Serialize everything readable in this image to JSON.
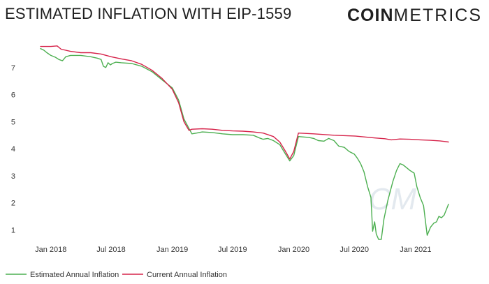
{
  "header": {
    "title": "ESTIMATED INFLATION WITH EIP-1559",
    "brand_bold": "COIN",
    "brand_light": "METRICS"
  },
  "chart_data": {
    "type": "line",
    "title": "ESTIMATED INFLATION WITH EIP-1559",
    "xlabel": "",
    "ylabel": "",
    "x_start": "2017-12-01",
    "x_end": "2021-04-10",
    "ylim": [
      0.6,
      7.95
    ],
    "y_ticks": [
      1,
      2,
      3,
      4,
      5,
      6,
      7
    ],
    "x_ticks": [
      {
        "label": "Jan 2018",
        "date": "2018-01-01"
      },
      {
        "label": "Jul 2018",
        "date": "2018-07-01"
      },
      {
        "label": "Jan 2019",
        "date": "2019-01-01"
      },
      {
        "label": "Jul 2019",
        "date": "2019-07-01"
      },
      {
        "label": "Jan 2020",
        "date": "2020-01-01"
      },
      {
        "label": "Jul 2020",
        "date": "2020-07-01"
      },
      {
        "label": "Jan 2021",
        "date": "2021-01-01"
      }
    ],
    "grid": false,
    "legend_position": "bottom-left",
    "series": [
      {
        "name": "Estimated Annual Inflation",
        "color": "#4caf50",
        "points": [
          [
            "2017-12-01",
            7.7
          ],
          [
            "2017-12-10",
            7.65
          ],
          [
            "2017-12-20",
            7.55
          ],
          [
            "2018-01-01",
            7.45
          ],
          [
            "2018-01-15",
            7.38
          ],
          [
            "2018-01-25",
            7.3
          ],
          [
            "2018-02-05",
            7.25
          ],
          [
            "2018-02-15",
            7.4
          ],
          [
            "2018-03-01",
            7.45
          ],
          [
            "2018-04-01",
            7.45
          ],
          [
            "2018-05-01",
            7.4
          ],
          [
            "2018-05-20",
            7.35
          ],
          [
            "2018-06-01",
            7.3
          ],
          [
            "2018-06-08",
            7.05
          ],
          [
            "2018-06-15",
            7.0
          ],
          [
            "2018-06-22",
            7.18
          ],
          [
            "2018-06-29",
            7.1
          ],
          [
            "2018-07-05",
            7.15
          ],
          [
            "2018-07-15",
            7.2
          ],
          [
            "2018-08-01",
            7.18
          ],
          [
            "2018-09-01",
            7.15
          ],
          [
            "2018-10-01",
            7.05
          ],
          [
            "2018-11-01",
            6.85
          ],
          [
            "2018-12-01",
            6.55
          ],
          [
            "2019-01-01",
            6.25
          ],
          [
            "2019-01-20",
            5.8
          ],
          [
            "2019-02-05",
            5.1
          ],
          [
            "2019-02-20",
            4.75
          ],
          [
            "2019-03-01",
            4.55
          ],
          [
            "2019-03-15",
            4.58
          ],
          [
            "2019-04-01",
            4.62
          ],
          [
            "2019-05-01",
            4.6
          ],
          [
            "2019-06-01",
            4.55
          ],
          [
            "2019-07-01",
            4.52
          ],
          [
            "2019-08-01",
            4.52
          ],
          [
            "2019-09-01",
            4.5
          ],
          [
            "2019-09-20",
            4.4
          ],
          [
            "2019-10-01",
            4.35
          ],
          [
            "2019-10-15",
            4.38
          ],
          [
            "2019-11-01",
            4.3
          ],
          [
            "2019-11-20",
            4.15
          ],
          [
            "2019-12-05",
            3.85
          ],
          [
            "2019-12-20",
            3.55
          ],
          [
            "2020-01-01",
            3.75
          ],
          [
            "2020-01-15",
            4.45
          ],
          [
            "2020-02-15",
            4.42
          ],
          [
            "2020-03-01",
            4.38
          ],
          [
            "2020-03-15",
            4.3
          ],
          [
            "2020-04-01",
            4.28
          ],
          [
            "2020-04-15",
            4.38
          ],
          [
            "2020-05-01",
            4.3
          ],
          [
            "2020-05-15",
            4.1
          ],
          [
            "2020-06-01",
            4.05
          ],
          [
            "2020-06-15",
            3.9
          ],
          [
            "2020-07-01",
            3.8
          ],
          [
            "2020-07-10",
            3.65
          ],
          [
            "2020-07-20",
            3.45
          ],
          [
            "2020-07-30",
            3.15
          ],
          [
            "2020-08-10",
            2.6
          ],
          [
            "2020-08-20",
            2.2
          ],
          [
            "2020-08-25",
            0.95
          ],
          [
            "2020-08-31",
            1.3
          ],
          [
            "2020-09-05",
            0.85
          ],
          [
            "2020-09-12",
            0.65
          ],
          [
            "2020-09-20",
            0.65
          ],
          [
            "2020-09-28",
            1.4
          ],
          [
            "2020-10-10",
            2.1
          ],
          [
            "2020-10-25",
            2.8
          ],
          [
            "2020-11-05",
            3.2
          ],
          [
            "2020-11-15",
            3.45
          ],
          [
            "2020-11-25",
            3.4
          ],
          [
            "2020-12-05",
            3.3
          ],
          [
            "2020-12-15",
            3.2
          ],
          [
            "2020-12-28",
            3.1
          ],
          [
            "2021-01-05",
            2.6
          ],
          [
            "2021-01-15",
            2.2
          ],
          [
            "2021-01-25",
            1.9
          ],
          [
            "2021-02-05",
            0.8
          ],
          [
            "2021-02-15",
            1.1
          ],
          [
            "2021-02-25",
            1.25
          ],
          [
            "2021-03-05",
            1.3
          ],
          [
            "2021-03-12",
            1.5
          ],
          [
            "2021-03-20",
            1.45
          ],
          [
            "2021-03-28",
            1.55
          ],
          [
            "2021-04-10",
            1.95
          ]
        ]
      },
      {
        "name": "Current Annual Inflation",
        "color": "#d6234a",
        "points": [
          [
            "2017-12-01",
            7.78
          ],
          [
            "2018-01-01",
            7.78
          ],
          [
            "2018-01-20",
            7.8
          ],
          [
            "2018-02-01",
            7.68
          ],
          [
            "2018-03-01",
            7.6
          ],
          [
            "2018-04-01",
            7.55
          ],
          [
            "2018-05-01",
            7.55
          ],
          [
            "2018-06-01",
            7.5
          ],
          [
            "2018-07-01",
            7.4
          ],
          [
            "2018-08-01",
            7.32
          ],
          [
            "2018-09-01",
            7.25
          ],
          [
            "2018-10-01",
            7.12
          ],
          [
            "2018-11-01",
            6.9
          ],
          [
            "2018-12-01",
            6.6
          ],
          [
            "2019-01-01",
            6.2
          ],
          [
            "2019-01-20",
            5.7
          ],
          [
            "2019-02-05",
            5.0
          ],
          [
            "2019-02-20",
            4.68
          ],
          [
            "2019-03-01",
            4.72
          ],
          [
            "2019-04-01",
            4.74
          ],
          [
            "2019-05-01",
            4.72
          ],
          [
            "2019-06-01",
            4.68
          ],
          [
            "2019-07-01",
            4.66
          ],
          [
            "2019-08-01",
            4.65
          ],
          [
            "2019-09-01",
            4.62
          ],
          [
            "2019-10-01",
            4.58
          ],
          [
            "2019-11-01",
            4.45
          ],
          [
            "2019-11-20",
            4.25
          ],
          [
            "2019-12-05",
            3.95
          ],
          [
            "2019-12-20",
            3.62
          ],
          [
            "2020-01-01",
            3.9
          ],
          [
            "2020-01-15",
            4.58
          ],
          [
            "2020-03-01",
            4.55
          ],
          [
            "2020-05-01",
            4.5
          ],
          [
            "2020-07-01",
            4.47
          ],
          [
            "2020-09-01",
            4.4
          ],
          [
            "2020-10-01",
            4.37
          ],
          [
            "2020-10-20",
            4.33
          ],
          [
            "2020-11-15",
            4.36
          ],
          [
            "2020-12-15",
            4.35
          ],
          [
            "2021-01-15",
            4.33
          ],
          [
            "2021-02-15",
            4.31
          ],
          [
            "2021-03-15",
            4.29
          ],
          [
            "2021-04-10",
            4.25
          ]
        ]
      }
    ]
  },
  "watermark": "CM"
}
